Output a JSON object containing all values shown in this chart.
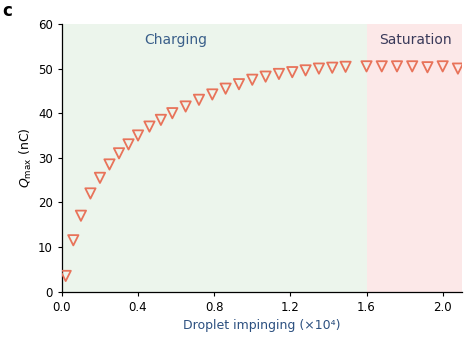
{
  "x_data": [
    0.02,
    0.06,
    0.1,
    0.15,
    0.2,
    0.25,
    0.3,
    0.35,
    0.4,
    0.46,
    0.52,
    0.58,
    0.65,
    0.72,
    0.79,
    0.86,
    0.93,
    1.0,
    1.07,
    1.14,
    1.21,
    1.28,
    1.35,
    1.42,
    1.49,
    1.6,
    1.68,
    1.76,
    1.84,
    1.92,
    2.0,
    2.08
  ],
  "y_data": [
    3.5,
    11.5,
    17.0,
    22.0,
    25.5,
    28.5,
    31.0,
    33.0,
    35.0,
    37.0,
    38.5,
    40.0,
    41.5,
    43.0,
    44.2,
    45.5,
    46.5,
    47.5,
    48.2,
    48.8,
    49.2,
    49.6,
    50.0,
    50.2,
    50.4,
    50.5,
    50.5,
    50.5,
    50.5,
    50.3,
    50.5,
    50.0
  ],
  "marker_edgecolor": "#e8735a",
  "charging_bg": "#ecf5ec",
  "saturation_bg": "#fce8e8",
  "charging_label": "Charging",
  "saturation_label": "Saturation",
  "charging_label_color": "#3a5f8a",
  "saturation_label_color": "#3a3a5a",
  "xlabel": "Droplet impinging (×10⁴)",
  "xlabel_color": "#2c5080",
  "ylabel": "$Q_{\\mathrm{max}}$ (nC)",
  "xlim": [
    0.0,
    2.1
  ],
  "ylim": [
    0,
    60
  ],
  "xticks": [
    0.0,
    0.4,
    0.8,
    1.2,
    1.6,
    2.0
  ],
  "yticks": [
    0,
    10,
    20,
    30,
    40,
    50,
    60
  ],
  "saturation_start": 1.6,
  "panel_label": "c",
  "region_label_fontsize": 10,
  "axis_label_fontsize": 9,
  "tick_fontsize": 8.5,
  "panel_fontsize": 12
}
